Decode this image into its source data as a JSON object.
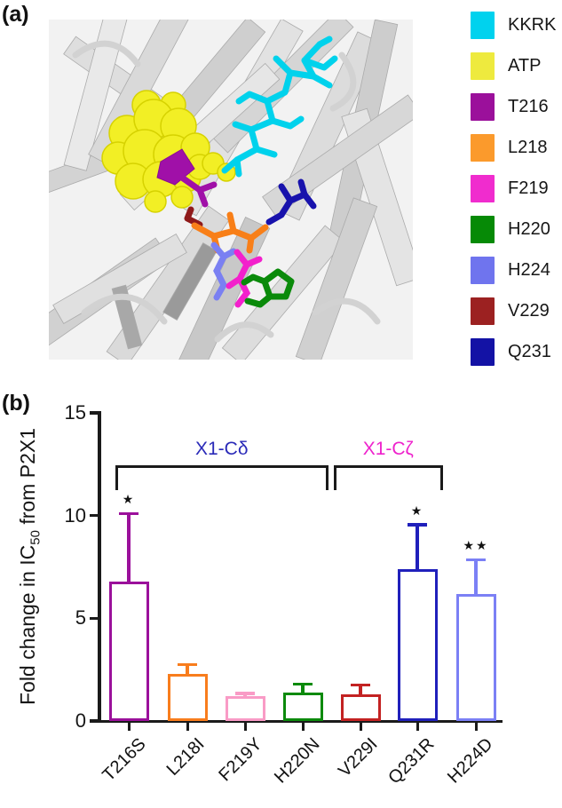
{
  "panel_a": {
    "label": "(a)",
    "image_description": "P2X1 receptor structure (gray cartoon) with ATP (yellow spheres), KKRK motif (cyan sticks) and mutated residues shown as colored sticks",
    "legend": [
      {
        "name": "KKRK",
        "color": "#00d2ee"
      },
      {
        "name": "ATP",
        "color": "#eeea3e"
      },
      {
        "name": "T216",
        "color": "#9b109b"
      },
      {
        "name": "L218",
        "color": "#fb9a2c"
      },
      {
        "name": "F219",
        "color": "#f02cce"
      },
      {
        "name": "H220",
        "color": "#068a06"
      },
      {
        "name": "H224",
        "color": "#6f74ee"
      },
      {
        "name": "V229",
        "color": "#9c2121"
      },
      {
        "name": "Q231",
        "color": "#1312a5"
      }
    ]
  },
  "panel_b": {
    "label": "(b)",
    "chart_data": {
      "type": "bar",
      "title": "",
      "xlabel": "",
      "ylabel": "Fold change in IC50 from P2X1",
      "ylabel_parts": {
        "pre": "Fold change in IC",
        "sub": "50",
        "post": " from P2X1"
      },
      "ylim": [
        0,
        15
      ],
      "yticks": [
        0,
        5,
        10,
        15
      ],
      "grid": false,
      "bar_fill": "white",
      "categories": [
        "T216S",
        "L218I",
        "F219Y",
        "H220N",
        "V229I",
        "Q231R",
        "H224D"
      ],
      "values": [
        6.8,
        2.3,
        1.2,
        1.4,
        1.3,
        7.4,
        6.2
      ],
      "errors_upper": [
        3.3,
        0.45,
        0.15,
        0.4,
        0.45,
        2.15,
        1.65
      ],
      "bar_colors": [
        "#9b109b",
        "#f87d1d",
        "#f99bc6",
        "#0c8a0c",
        "#c32222",
        "#2020bb",
        "#7b80f5"
      ],
      "significance": [
        "*",
        "",
        "",
        "",
        "",
        "*",
        "**"
      ],
      "groups": [
        {
          "label": "X1-Cδ",
          "color": "#2a2ab8",
          "categories": [
            "T216S",
            "L218I",
            "F219Y",
            "H220N"
          ]
        },
        {
          "label": "X1-Cζ",
          "color": "#ee22cc",
          "categories": [
            "V229I",
            "Q231R"
          ]
        }
      ]
    }
  }
}
